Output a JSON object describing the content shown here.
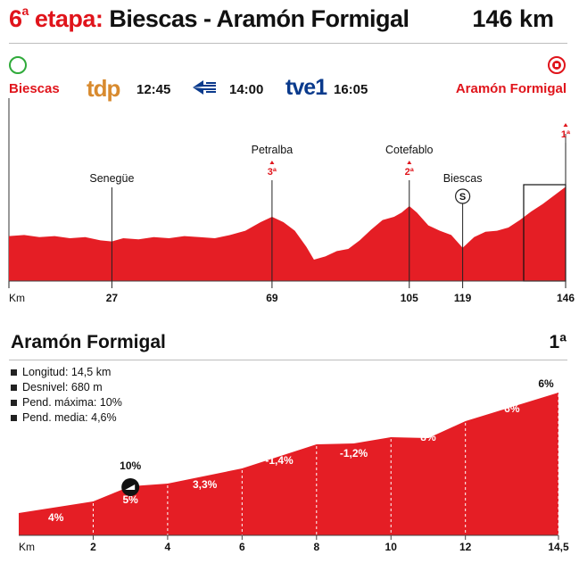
{
  "stage": {
    "number": "6",
    "ordinal_suffix": "a",
    "word": "etapa:",
    "route": "Biescas - Aramón Formigal",
    "distance": "146 km"
  },
  "start": {
    "name": "Biescas",
    "icon": "start-play-icon"
  },
  "finish": {
    "name": "Aramón Formigal",
    "icon": "finish-stop-icon"
  },
  "broadcast": [
    {
      "channel": "tdp",
      "time": "12:45"
    },
    {
      "channel": "teledeporte-symbol",
      "time": "14:00"
    },
    {
      "channel": "tve1",
      "time": "16:05"
    }
  ],
  "profile": {
    "axis_label": "Km",
    "km_marks": [
      {
        "km": 27,
        "label": "27"
      },
      {
        "km": 69,
        "label": "69"
      },
      {
        "km": 105,
        "label": "105"
      },
      {
        "km": 119,
        "label": "119"
      },
      {
        "km": 146,
        "label": "146"
      }
    ],
    "points": [
      {
        "km": 27,
        "name": "Senegüe",
        "category": ""
      },
      {
        "km": 69,
        "name": "Petralba",
        "category": "3ª"
      },
      {
        "km": 105,
        "name": "Cotefablo",
        "category": "2ª"
      },
      {
        "km": 119,
        "name": "Biescas",
        "category": "",
        "sprint": "S"
      },
      {
        "km": 146,
        "name": "",
        "category": "1ª"
      }
    ],
    "elevation_shape": [
      [
        0,
        0.42
      ],
      [
        4,
        0.43
      ],
      [
        8,
        0.41
      ],
      [
        12,
        0.42
      ],
      [
        16,
        0.4
      ],
      [
        20,
        0.41
      ],
      [
        24,
        0.38
      ],
      [
        27,
        0.37
      ],
      [
        30,
        0.4
      ],
      [
        34,
        0.39
      ],
      [
        38,
        0.41
      ],
      [
        42,
        0.4
      ],
      [
        46,
        0.42
      ],
      [
        50,
        0.41
      ],
      [
        54,
        0.4
      ],
      [
        58,
        0.43
      ],
      [
        62,
        0.47
      ],
      [
        66,
        0.55
      ],
      [
        69,
        0.6
      ],
      [
        72,
        0.55
      ],
      [
        75,
        0.47
      ],
      [
        78,
        0.32
      ],
      [
        80,
        0.2
      ],
      [
        83,
        0.23
      ],
      [
        86,
        0.28
      ],
      [
        89,
        0.3
      ],
      [
        92,
        0.38
      ],
      [
        95,
        0.48
      ],
      [
        98,
        0.57
      ],
      [
        101,
        0.6
      ],
      [
        103,
        0.64
      ],
      [
        105,
        0.7
      ],
      [
        107,
        0.64
      ],
      [
        110,
        0.52
      ],
      [
        113,
        0.47
      ],
      [
        116,
        0.43
      ],
      [
        119,
        0.31
      ],
      [
        122,
        0.41
      ],
      [
        125,
        0.46
      ],
      [
        128,
        0.47
      ],
      [
        131,
        0.5
      ],
      [
        134,
        0.57
      ],
      [
        137,
        0.65
      ],
      [
        140,
        0.72
      ],
      [
        143,
        0.8
      ],
      [
        146,
        0.88
      ]
    ],
    "zoom_box_start_km": 135
  },
  "climb": {
    "name": "Aramón Formigal",
    "category": "1ª",
    "stats": [
      "Longitud: 14,5 km",
      "Desnivel: 680 m",
      "Pend. máxima: 10%",
      "Pend. media: 4,6%"
    ],
    "axis_label": "Km",
    "km_marks": [
      "2",
      "4",
      "6",
      "8",
      "10",
      "12",
      "14,5"
    ],
    "segments": [
      {
        "from": 0,
        "to": 2,
        "grade": "4%"
      },
      {
        "from": 2,
        "to": 4,
        "grade": "5%"
      },
      {
        "from": 4,
        "to": 6,
        "grade": "3,3%"
      },
      {
        "from": 6,
        "to": 8,
        "grade": "-1,4%"
      },
      {
        "from": 8,
        "to": 10,
        "grade": "-1,2%"
      },
      {
        "from": 10,
        "to": 12,
        "grade": "8%"
      },
      {
        "from": 12,
        "to": 14.5,
        "grade": "6%"
      }
    ],
    "max_marker": {
      "km": 3,
      "label": "10%"
    }
  },
  "colors": {
    "accent": "#e0141b",
    "fill": "#e51e25",
    "tdp": "#d88a2e",
    "tve": "#0a3a8c"
  }
}
